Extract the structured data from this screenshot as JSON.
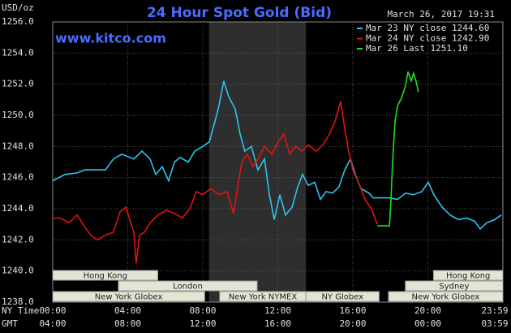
{
  "chart_data": {
    "type": "line",
    "title": "24 Hour Spot Gold (Bid)",
    "source": "www.kitco.com",
    "timestamp": "March 26, 2017 19:31",
    "y_label": "USD/oz",
    "x_label": "NY Time",
    "x2_label": "GMT",
    "ylim": [
      1238,
      1256
    ],
    "yticks": [
      {
        "value": 1238,
        "label": "1238.0"
      },
      {
        "value": 1240,
        "label": "1240.0"
      },
      {
        "value": 1242,
        "label": "1242.0"
      },
      {
        "value": 1244,
        "label": "1244.0"
      },
      {
        "value": 1246,
        "label": "1246.0"
      },
      {
        "value": 1248,
        "label": "1248.0"
      },
      {
        "value": 1250,
        "label": "1250.0"
      },
      {
        "value": 1252,
        "label": "1252.0"
      },
      {
        "value": 1254,
        "label": "1254.0"
      },
      {
        "value": 1256,
        "label": "1256.0"
      }
    ],
    "xlim": [
      0,
      24
    ],
    "xticks": [
      {
        "value": 0,
        "label": "00:00"
      },
      {
        "value": 4,
        "label": "04:00"
      },
      {
        "value": 8,
        "label": "08:00"
      },
      {
        "value": 12,
        "label": "12:00"
      },
      {
        "value": 16,
        "label": "16:00"
      },
      {
        "value": 20,
        "label": "20:00"
      },
      {
        "value": 23.98,
        "label": "23:59"
      }
    ],
    "x2ticks": [
      {
        "value": 0,
        "label": "04:00"
      },
      {
        "value": 4,
        "label": "08:00"
      },
      {
        "value": 8,
        "label": "12:00"
      },
      {
        "value": 12,
        "label": "16:00"
      },
      {
        "value": 16,
        "label": "20:00"
      },
      {
        "value": 20,
        "label": "00:00"
      },
      {
        "value": 23.98,
        "label": "03:59"
      }
    ],
    "grid": true,
    "legend": "upper right",
    "shade": [
      8.33,
      13.5
    ],
    "sessions": [
      {
        "label": "Hong Kong",
        "start": 0,
        "end": 5.6,
        "row": 0
      },
      {
        "label": "Hong Kong",
        "start": 20.3,
        "end": 24,
        "row": 0
      },
      {
        "label": "London",
        "start": 3.5,
        "end": 10.9,
        "row": 1
      },
      {
        "label": "Sydney",
        "start": 18.8,
        "end": 24,
        "row": 1
      },
      {
        "label": "New York Globex",
        "start": 0,
        "end": 8.1,
        "row": 2
      },
      {
        "label": "New York NYMEX",
        "start": 8.9,
        "end": 13.5,
        "row": 2
      },
      {
        "label": "NY Globex",
        "start": 13.5,
        "end": 17.4,
        "row": 2
      },
      {
        "label": "New York Globex",
        "start": 17.9,
        "end": 24,
        "row": 2
      }
    ],
    "series": [
      {
        "name": "Mar 23 NY close 1244.60",
        "color": "#2ec4f0",
        "x": [
          0,
          0.65,
          1.3,
          1.73,
          2.81,
          3.24,
          3.68,
          4.32,
          4.76,
          5.19,
          5.49,
          5.84,
          6.18,
          6.49,
          6.79,
          7.22,
          7.57,
          8.0,
          8.35,
          8.65,
          8.86,
          9.12,
          9.38,
          9.73,
          9.99,
          10.24,
          10.59,
          10.94,
          11.29,
          11.55,
          11.81,
          12.11,
          12.41,
          12.76,
          13.06,
          13.32,
          13.62,
          13.97,
          14.27,
          14.57,
          14.92,
          15.26,
          15.57,
          15.87,
          16.13,
          16.43,
          16.86,
          17.08,
          17.95,
          18.38,
          18.81,
          19.24,
          19.68,
          20.02,
          20.32,
          20.76,
          21.19,
          21.62,
          22.05,
          22.49,
          22.79,
          23.14,
          23.57,
          23.91
        ],
        "values": [
          1245.8,
          1246.2,
          1246.3,
          1246.5,
          1246.5,
          1247.2,
          1247.5,
          1247.2,
          1247.7,
          1247.2,
          1246.2,
          1246.7,
          1245.8,
          1247.0,
          1247.3,
          1247.0,
          1247.7,
          1248.0,
          1248.3,
          1249.6,
          1250.6,
          1252.2,
          1251.2,
          1250.4,
          1248.8,
          1247.7,
          1248.0,
          1246.5,
          1247.2,
          1244.9,
          1243.3,
          1244.9,
          1243.6,
          1244.1,
          1245.4,
          1246.2,
          1245.5,
          1245.7,
          1244.6,
          1245.1,
          1245.0,
          1245.4,
          1246.5,
          1247.2,
          1246.2,
          1245.3,
          1245.0,
          1244.7,
          1244.7,
          1244.6,
          1245.0,
          1244.9,
          1245.1,
          1245.7,
          1244.9,
          1244.1,
          1243.6,
          1243.3,
          1243.4,
          1243.2,
          1242.7,
          1243.1,
          1243.3,
          1243.6
        ]
      },
      {
        "name": "Mar 24 NY close 1242.90",
        "color": "#e01414",
        "x": [
          0,
          0.43,
          0.86,
          1.3,
          1.73,
          2.03,
          2.38,
          2.81,
          3.24,
          3.59,
          3.89,
          4.11,
          4.32,
          4.45,
          4.63,
          4.89,
          5.19,
          5.62,
          6.05,
          6.49,
          6.92,
          7.35,
          7.65,
          8.0,
          8.43,
          8.86,
          9.3,
          9.64,
          9.86,
          10.08,
          10.38,
          10.68,
          10.94,
          11.29,
          11.68,
          12.02,
          12.32,
          12.63,
          12.97,
          13.28,
          13.62,
          14.05,
          14.4,
          14.75,
          15.05,
          15.35,
          15.57,
          15.78,
          16.0,
          16.3,
          16.65,
          16.99,
          17.3
        ],
        "values": [
          1243.4,
          1243.4,
          1243.1,
          1243.6,
          1242.8,
          1242.3,
          1242.0,
          1242.3,
          1242.5,
          1243.8,
          1244.1,
          1243.3,
          1242.5,
          1240.5,
          1242.3,
          1242.5,
          1243.1,
          1243.6,
          1243.9,
          1243.7,
          1243.4,
          1244.1,
          1245.1,
          1244.9,
          1245.3,
          1244.9,
          1245.1,
          1243.7,
          1245.4,
          1247.0,
          1247.5,
          1246.7,
          1247.2,
          1248.0,
          1247.5,
          1248.3,
          1248.8,
          1247.5,
          1248.0,
          1247.7,
          1248.1,
          1247.7,
          1248.1,
          1248.8,
          1249.6,
          1250.9,
          1249.1,
          1247.7,
          1246.5,
          1245.7,
          1244.6,
          1244.0,
          1243.0
        ]
      },
      {
        "name": "Mar 26 Last 1251.10",
        "color": "#22dd22",
        "x": [
          17.3,
          17.95,
          18.03,
          18.12,
          18.25,
          18.38,
          18.59,
          18.81,
          18.94,
          19.11,
          19.24,
          19.37,
          19.5
        ],
        "values": [
          1242.9,
          1242.9,
          1244.4,
          1247.0,
          1249.6,
          1250.6,
          1251.1,
          1251.9,
          1252.8,
          1252.2,
          1252.7,
          1252.2,
          1251.5
        ]
      }
    ]
  }
}
